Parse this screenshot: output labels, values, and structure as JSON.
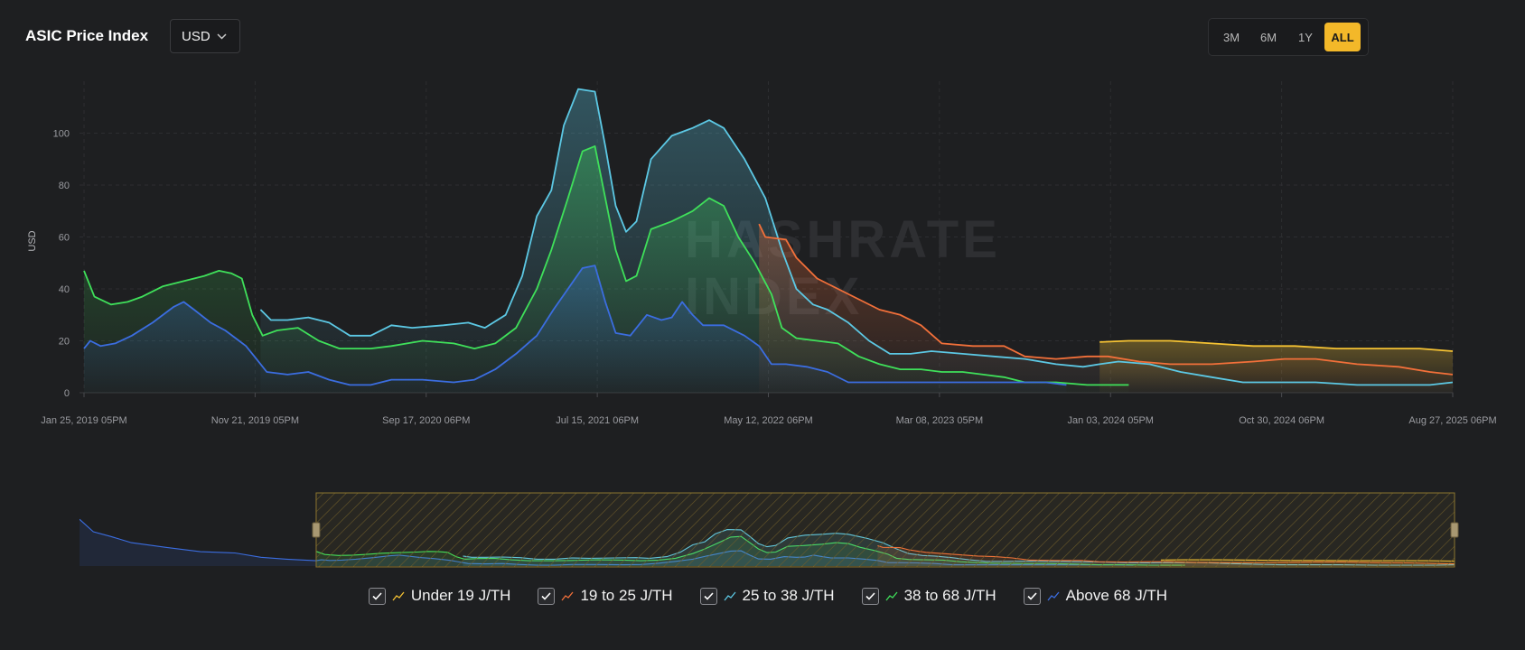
{
  "header": {
    "title": "ASIC Price Index",
    "currency": "USD",
    "ranges": [
      "3M",
      "6M",
      "1Y",
      "ALL"
    ],
    "active_range": "ALL"
  },
  "watermark": [
    "HASHRATE",
    "INDEX"
  ],
  "legend": [
    {
      "label": "Under 19 J/TH",
      "color": "#f5c233"
    },
    {
      "label": "19 to 25 J/TH",
      "color": "#f2703a"
    },
    {
      "label": "25 to 38 J/TH",
      "color": "#5cc8e4"
    },
    {
      "label": "38 to 68 J/TH",
      "color": "#3fe05a"
    },
    {
      "label": "Above 68 J/TH",
      "color": "#3b6de0"
    }
  ],
  "chart_data": {
    "type": "area",
    "title": "ASIC Price Index",
    "xlabel": "",
    "ylabel": "USD",
    "ylim": [
      0,
      120
    ],
    "yticks": [
      0,
      20,
      40,
      60,
      80,
      100
    ],
    "xticks": [
      "Jan 25, 2019 05PM",
      "Nov 21, 2019 05PM",
      "Sep 17, 2020 06PM",
      "Jul 15, 2021 06PM",
      "May 12, 2022 06PM",
      "Mar 08, 2023 05PM",
      "Jan 03, 2024 05PM",
      "Oct 30, 2024 06PM",
      "Aug 27, 2025 06PM"
    ],
    "x_range": [
      2019.07,
      2025.66
    ],
    "series": [
      {
        "name": "Under 19 J/TH",
        "color": "#f5c233",
        "points": [
          [
            2023.96,
            19.5
          ],
          [
            2024.1,
            20
          ],
          [
            2024.3,
            20
          ],
          [
            2024.5,
            19
          ],
          [
            2024.7,
            18
          ],
          [
            2024.9,
            18
          ],
          [
            2025.1,
            17
          ],
          [
            2025.3,
            17
          ],
          [
            2025.5,
            17
          ],
          [
            2025.66,
            16
          ]
        ]
      },
      {
        "name": "19 to 25 J/TH",
        "color": "#f2703a",
        "points": [
          [
            2022.32,
            65
          ],
          [
            2022.35,
            60
          ],
          [
            2022.45,
            59
          ],
          [
            2022.5,
            52
          ],
          [
            2022.6,
            44
          ],
          [
            2022.7,
            40
          ],
          [
            2022.8,
            36
          ],
          [
            2022.9,
            32
          ],
          [
            2023.0,
            30
          ],
          [
            2023.1,
            26
          ],
          [
            2023.2,
            19
          ],
          [
            2023.35,
            18
          ],
          [
            2023.5,
            18
          ],
          [
            2023.6,
            14
          ],
          [
            2023.75,
            13
          ],
          [
            2023.9,
            14
          ],
          [
            2024.0,
            14
          ],
          [
            2024.15,
            12
          ],
          [
            2024.3,
            11
          ],
          [
            2024.5,
            11
          ],
          [
            2024.7,
            12
          ],
          [
            2024.85,
            13
          ],
          [
            2025.0,
            13
          ],
          [
            2025.2,
            11
          ],
          [
            2025.4,
            10
          ],
          [
            2025.55,
            8
          ],
          [
            2025.66,
            7
          ]
        ]
      },
      {
        "name": "25 to 38 J/TH",
        "color": "#5cc8e4",
        "points": [
          [
            2019.92,
            32
          ],
          [
            2019.97,
            28
          ],
          [
            2020.05,
            28
          ],
          [
            2020.15,
            29
          ],
          [
            2020.25,
            27
          ],
          [
            2020.35,
            22
          ],
          [
            2020.45,
            22
          ],
          [
            2020.55,
            26
          ],
          [
            2020.65,
            25
          ],
          [
            2020.8,
            26
          ],
          [
            2020.92,
            27
          ],
          [
            2021.0,
            25
          ],
          [
            2021.1,
            30
          ],
          [
            2021.18,
            45
          ],
          [
            2021.25,
            68
          ],
          [
            2021.32,
            78
          ],
          [
            2021.38,
            103
          ],
          [
            2021.45,
            117
          ],
          [
            2021.53,
            116
          ],
          [
            2021.58,
            95
          ],
          [
            2021.63,
            72
          ],
          [
            2021.68,
            62
          ],
          [
            2021.73,
            66
          ],
          [
            2021.8,
            90
          ],
          [
            2021.9,
            99
          ],
          [
            2022.0,
            102
          ],
          [
            2022.08,
            105
          ],
          [
            2022.15,
            102
          ],
          [
            2022.25,
            90
          ],
          [
            2022.35,
            75
          ],
          [
            2022.43,
            55
          ],
          [
            2022.5,
            40
          ],
          [
            2022.58,
            34
          ],
          [
            2022.65,
            32
          ],
          [
            2022.75,
            27
          ],
          [
            2022.85,
            20
          ],
          [
            2022.95,
            15
          ],
          [
            2023.05,
            15
          ],
          [
            2023.15,
            16
          ],
          [
            2023.3,
            15
          ],
          [
            2023.45,
            14
          ],
          [
            2023.6,
            13
          ],
          [
            2023.75,
            11
          ],
          [
            2023.88,
            10
          ],
          [
            2023.96,
            11
          ],
          [
            2024.05,
            12
          ],
          [
            2024.2,
            11
          ],
          [
            2024.35,
            8
          ],
          [
            2024.5,
            6
          ],
          [
            2024.65,
            4
          ],
          [
            2024.85,
            4
          ],
          [
            2025.0,
            4
          ],
          [
            2025.2,
            3
          ],
          [
            2025.4,
            3
          ],
          [
            2025.55,
            3
          ],
          [
            2025.66,
            4
          ]
        ]
      },
      {
        "name": "38 to 68 J/TH",
        "color": "#3fe05a",
        "points": [
          [
            2019.07,
            47
          ],
          [
            2019.12,
            37
          ],
          [
            2019.2,
            34
          ],
          [
            2019.28,
            35
          ],
          [
            2019.35,
            37
          ],
          [
            2019.45,
            41
          ],
          [
            2019.55,
            43
          ],
          [
            2019.65,
            45
          ],
          [
            2019.72,
            47
          ],
          [
            2019.78,
            46
          ],
          [
            2019.83,
            44
          ],
          [
            2019.88,
            30
          ],
          [
            2019.93,
            22
          ],
          [
            2020.0,
            24
          ],
          [
            2020.1,
            25
          ],
          [
            2020.2,
            20
          ],
          [
            2020.3,
            17
          ],
          [
            2020.45,
            17
          ],
          [
            2020.55,
            18
          ],
          [
            2020.7,
            20
          ],
          [
            2020.85,
            19
          ],
          [
            2020.95,
            17
          ],
          [
            2021.05,
            19
          ],
          [
            2021.15,
            25
          ],
          [
            2021.25,
            40
          ],
          [
            2021.32,
            55
          ],
          [
            2021.4,
            75
          ],
          [
            2021.47,
            93
          ],
          [
            2021.53,
            95
          ],
          [
            2021.58,
            75
          ],
          [
            2021.63,
            55
          ],
          [
            2021.68,
            43
          ],
          [
            2021.73,
            45
          ],
          [
            2021.8,
            63
          ],
          [
            2021.9,
            66
          ],
          [
            2022.0,
            70
          ],
          [
            2022.08,
            75
          ],
          [
            2022.15,
            72
          ],
          [
            2022.22,
            60
          ],
          [
            2022.3,
            50
          ],
          [
            2022.38,
            38
          ],
          [
            2022.43,
            25
          ],
          [
            2022.5,
            21
          ],
          [
            2022.6,
            20
          ],
          [
            2022.7,
            19
          ],
          [
            2022.8,
            14
          ],
          [
            2022.9,
            11
          ],
          [
            2023.0,
            9
          ],
          [
            2023.1,
            9
          ],
          [
            2023.2,
            8
          ],
          [
            2023.3,
            8
          ],
          [
            2023.4,
            7
          ],
          [
            2023.5,
            6
          ],
          [
            2023.6,
            4
          ],
          [
            2023.75,
            4
          ],
          [
            2023.9,
            3
          ],
          [
            2024.0,
            3
          ],
          [
            2024.1,
            3
          ]
        ]
      },
      {
        "name": "Above 68 J/TH",
        "color": "#3b6de0",
        "points": [
          [
            2019.07,
            17
          ],
          [
            2019.1,
            20
          ],
          [
            2019.15,
            18
          ],
          [
            2019.22,
            19
          ],
          [
            2019.3,
            22
          ],
          [
            2019.4,
            27
          ],
          [
            2019.5,
            33
          ],
          [
            2019.55,
            35
          ],
          [
            2019.6,
            32
          ],
          [
            2019.68,
            27
          ],
          [
            2019.75,
            24
          ],
          [
            2019.8,
            21
          ],
          [
            2019.85,
            18
          ],
          [
            2019.9,
            13
          ],
          [
            2019.95,
            8
          ],
          [
            2020.05,
            7
          ],
          [
            2020.15,
            8
          ],
          [
            2020.25,
            5
          ],
          [
            2020.35,
            3
          ],
          [
            2020.45,
            3
          ],
          [
            2020.55,
            5
          ],
          [
            2020.7,
            5
          ],
          [
            2020.85,
            4
          ],
          [
            2020.95,
            5
          ],
          [
            2021.05,
            9
          ],
          [
            2021.15,
            15
          ],
          [
            2021.25,
            22
          ],
          [
            2021.33,
            32
          ],
          [
            2021.4,
            40
          ],
          [
            2021.47,
            48
          ],
          [
            2021.53,
            49
          ],
          [
            2021.58,
            35
          ],
          [
            2021.63,
            23
          ],
          [
            2021.7,
            22
          ],
          [
            2021.78,
            30
          ],
          [
            2021.85,
            28
          ],
          [
            2021.9,
            29
          ],
          [
            2021.95,
            35
          ],
          [
            2022.0,
            30
          ],
          [
            2022.05,
            26
          ],
          [
            2022.15,
            26
          ],
          [
            2022.25,
            22
          ],
          [
            2022.32,
            18
          ],
          [
            2022.38,
            11
          ],
          [
            2022.45,
            11
          ],
          [
            2022.55,
            10
          ],
          [
            2022.65,
            8
          ],
          [
            2022.75,
            4
          ],
          [
            2022.9,
            4
          ],
          [
            2023.1,
            4
          ],
          [
            2023.3,
            4
          ],
          [
            2023.5,
            4
          ],
          [
            2023.7,
            4
          ],
          [
            2023.8,
            3
          ]
        ]
      }
    ]
  }
}
